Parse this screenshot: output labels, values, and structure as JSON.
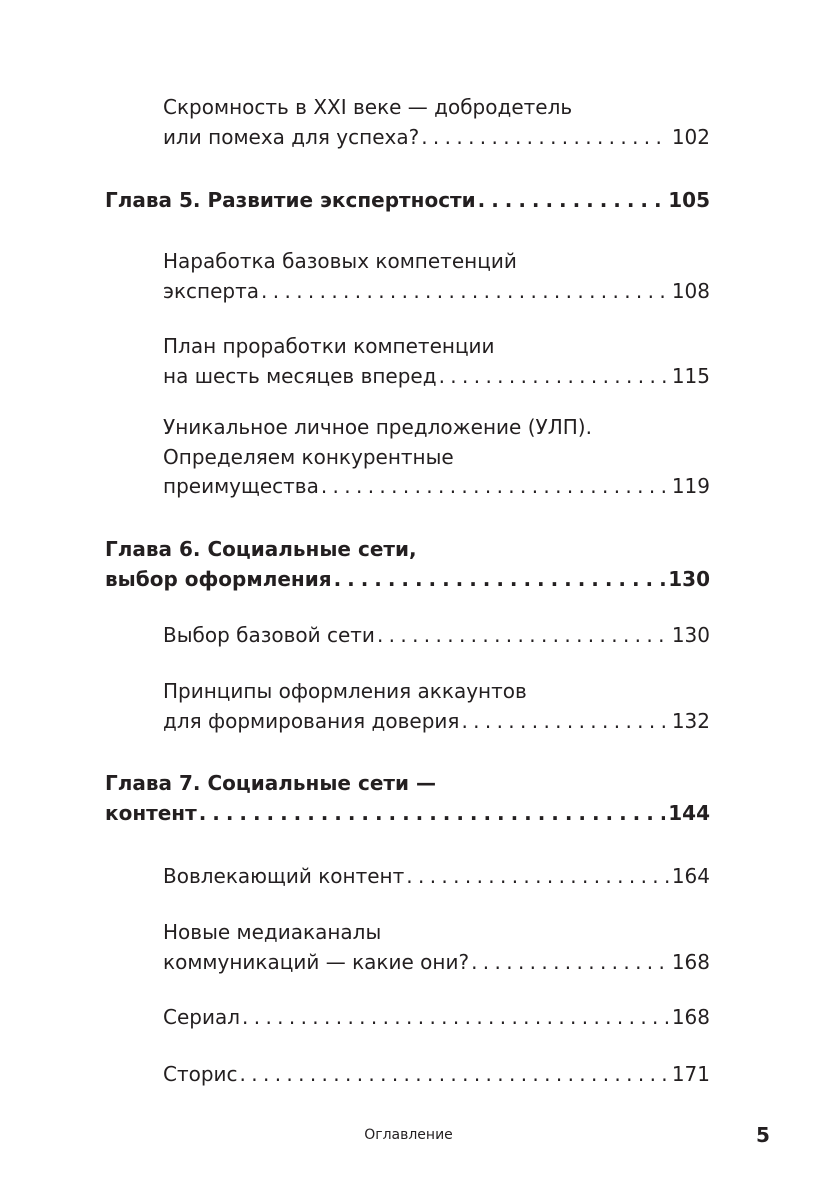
{
  "entries": [
    {
      "type": "section",
      "lines": [
        "Скромность в XXI веке — добродетель",
        "или помеха для успеха?"
      ],
      "page": "102"
    },
    {
      "type": "chapter",
      "lines": [
        "Глава 5. Развитие экспертности"
      ],
      "page": "105"
    },
    {
      "type": "section",
      "lines": [
        "Наработка базовых компетенций",
        "эксперта"
      ],
      "page": "108"
    },
    {
      "type": "section",
      "lines": [
        "План проработки компетенции",
        "на шесть месяцев вперед"
      ],
      "page": "115"
    },
    {
      "type": "section",
      "lines": [
        "Уникальное личное предложение (УЛП).",
        "Определяем  конкурентные",
        "преимущества"
      ],
      "page": "119"
    },
    {
      "type": "chapter",
      "lines": [
        "Глава 6. Социальные сети,",
        "выбор оформления"
      ],
      "page": "130"
    },
    {
      "type": "section",
      "lines": [
        "Выбор базовой сети"
      ],
      "page": "130"
    },
    {
      "type": "section",
      "lines": [
        "Принципы оформления аккаунтов",
        "для формирования доверия"
      ],
      "page": "132"
    },
    {
      "type": "chapter",
      "lines": [
        "Глава 7. Социальные сети —",
        "контент"
      ],
      "page": "144"
    },
    {
      "type": "section",
      "lines": [
        "Вовлекающий контент"
      ],
      "page": "164"
    },
    {
      "type": "section",
      "lines": [
        "Новые медиаканалы",
        "коммуникаций — какие они?"
      ],
      "page": "168"
    },
    {
      "type": "section",
      "lines": [
        "Сериал"
      ],
      "page": "168"
    },
    {
      "type": "section",
      "lines": [
        "Сторис"
      ],
      "page": "171"
    }
  ],
  "footer": {
    "title": "Оглавление",
    "page_number": "5"
  }
}
